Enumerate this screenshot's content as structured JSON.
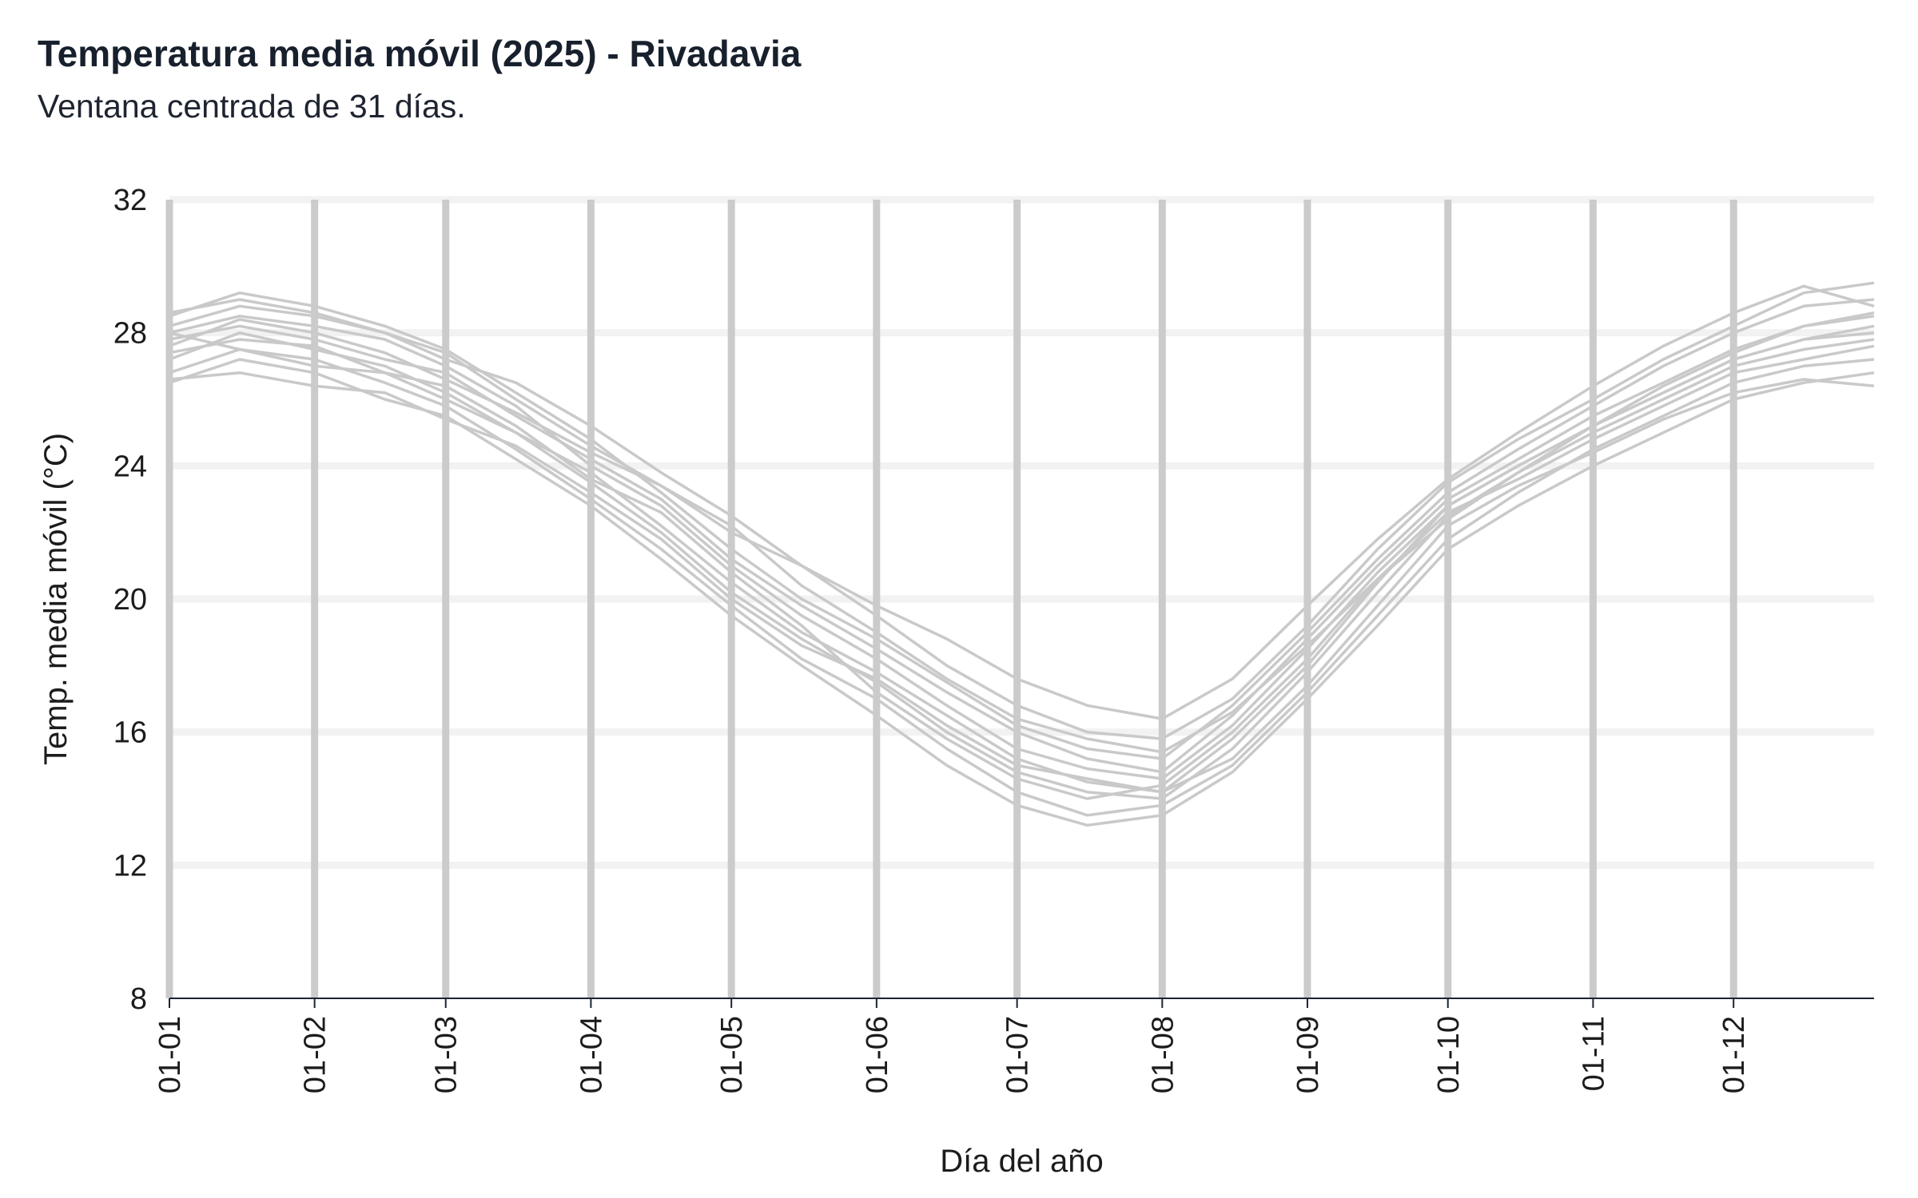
{
  "title": "Temperatura media móvil (2025) - Rivadavia",
  "subtitle": "Ventana centrada de 31 días.",
  "chart_data": {
    "type": "line",
    "xlabel": "Día del año",
    "ylabel": "Temp. media móvil (°C)",
    "ylim": [
      8,
      32
    ],
    "yticks": [
      8,
      12,
      16,
      20,
      24,
      28,
      32
    ],
    "xlim": [
      "01-01",
      "12-31"
    ],
    "xtick_labels": [
      "01-01",
      "01-02",
      "01-03",
      "01-04",
      "01-05",
      "01-06",
      "01-07",
      "01-08",
      "01-09",
      "01-10",
      "01-11",
      "01-12"
    ],
    "grid": "horizontal light lines; vertical grey lines at month starts",
    "line_color": "#c9c9c9",
    "x_points": [
      "01-01",
      "01-16",
      "02-01",
      "02-16",
      "03-01",
      "03-16",
      "04-01",
      "04-16",
      "05-01",
      "05-16",
      "06-01",
      "06-16",
      "07-01",
      "07-16",
      "08-01",
      "08-16",
      "09-01",
      "09-16",
      "10-01",
      "10-16",
      "11-01",
      "11-16",
      "12-01",
      "12-16",
      "12-31"
    ],
    "series": [
      {
        "values": [
          28.0,
          28.5,
          28.2,
          27.8,
          27.0,
          25.8,
          24.0,
          22.8,
          21.0,
          19.5,
          18.2,
          16.8,
          15.5,
          14.9,
          14.6,
          16.2,
          18.5,
          20.8,
          22.8,
          24.0,
          25.2,
          26.2,
          27.2,
          27.8,
          28.2
        ]
      },
      {
        "values": [
          27.2,
          28.0,
          27.5,
          27.0,
          26.2,
          25.0,
          23.5,
          22.0,
          20.2,
          18.8,
          17.5,
          16.0,
          14.8,
          14.2,
          14.0,
          15.5,
          17.8,
          20.2,
          22.5,
          23.8,
          25.0,
          26.0,
          27.0,
          27.5,
          27.8
        ]
      },
      {
        "values": [
          28.5,
          29.2,
          28.8,
          28.2,
          27.5,
          26.2,
          24.8,
          23.2,
          21.5,
          20.0,
          18.8,
          17.5,
          16.2,
          15.5,
          15.2,
          16.8,
          19.0,
          21.2,
          23.2,
          24.5,
          25.8,
          27.0,
          28.0,
          28.8,
          29.0
        ]
      },
      {
        "values": [
          26.8,
          27.5,
          27.2,
          26.5,
          25.8,
          24.5,
          23.0,
          21.5,
          19.8,
          18.2,
          17.0,
          15.5,
          14.2,
          13.5,
          13.8,
          15.0,
          17.2,
          19.5,
          21.8,
          23.2,
          24.5,
          25.5,
          26.5,
          27.0,
          27.2
        ]
      },
      {
        "values": [
          28.2,
          28.8,
          28.5,
          28.0,
          27.2,
          26.5,
          25.2,
          23.8,
          22.5,
          21.0,
          19.5,
          18.0,
          16.8,
          16.0,
          15.8,
          17.0,
          19.2,
          21.5,
          23.5,
          24.8,
          26.0,
          27.2,
          28.2,
          29.2,
          29.5
        ]
      },
      {
        "values": [
          27.8,
          28.2,
          27.8,
          27.2,
          26.8,
          25.5,
          24.2,
          23.0,
          21.2,
          19.8,
          18.5,
          17.2,
          16.0,
          15.2,
          14.8,
          16.5,
          18.8,
          21.0,
          23.0,
          24.2,
          25.5,
          26.5,
          27.5,
          28.2,
          28.5
        ]
      },
      {
        "values": [
          28.0,
          27.5,
          27.0,
          26.8,
          26.0,
          25.0,
          23.8,
          22.2,
          20.5,
          19.0,
          17.8,
          16.5,
          15.2,
          14.5,
          14.2,
          15.8,
          18.0,
          20.5,
          22.8,
          24.0,
          25.2,
          26.2,
          27.2,
          27.8,
          28.0
        ]
      },
      {
        "values": [
          26.5,
          27.2,
          26.8,
          26.0,
          25.5,
          24.2,
          22.8,
          21.2,
          19.5,
          18.0,
          16.5,
          15.0,
          13.8,
          13.2,
          13.5,
          14.8,
          17.0,
          19.2,
          21.5,
          22.8,
          24.0,
          25.0,
          26.0,
          26.5,
          26.8
        ]
      },
      {
        "values": [
          28.6,
          29.0,
          28.6,
          28.0,
          27.4,
          26.0,
          24.6,
          23.4,
          22.0,
          21.0,
          19.8,
          18.8,
          17.6,
          16.8,
          16.4,
          17.6,
          19.8,
          21.8,
          23.6,
          25.0,
          26.4,
          27.6,
          28.6,
          29.4,
          28.8
        ]
      },
      {
        "values": [
          27.4,
          27.8,
          27.6,
          26.8,
          26.4,
          25.2,
          23.6,
          22.6,
          20.8,
          19.2,
          17.2,
          15.8,
          14.6,
          14.0,
          14.4,
          16.0,
          18.2,
          20.6,
          22.6,
          23.6,
          24.8,
          25.8,
          26.8,
          27.2,
          27.6
        ]
      },
      {
        "values": [
          27.6,
          28.4,
          28.0,
          27.4,
          26.6,
          25.6,
          24.4,
          23.4,
          22.2,
          20.4,
          19.0,
          17.6,
          16.4,
          15.8,
          15.4,
          16.6,
          18.6,
          20.6,
          22.4,
          23.8,
          25.2,
          26.4,
          27.4,
          28.2,
          28.6
        ]
      },
      {
        "values": [
          26.6,
          26.8,
          26.4,
          26.2,
          25.4,
          24.6,
          23.2,
          21.8,
          20.0,
          18.6,
          17.6,
          16.2,
          15.0,
          14.6,
          14.2,
          15.2,
          17.4,
          19.8,
          22.2,
          23.4,
          24.4,
          25.4,
          26.2,
          26.6,
          26.4
        ]
      }
    ]
  }
}
